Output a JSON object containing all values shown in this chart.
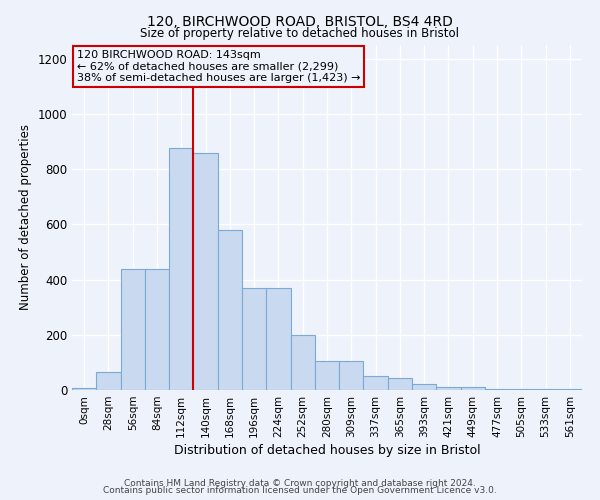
{
  "title": "120, BIRCHWOOD ROAD, BRISTOL, BS4 4RD",
  "subtitle": "Size of property relative to detached houses in Bristol",
  "xlabel": "Distribution of detached houses by size in Bristol",
  "ylabel": "Number of detached properties",
  "bar_color": "#c8d9f0",
  "bar_edge_color": "#7baad4",
  "categories": [
    "0sqm",
    "28sqm",
    "56sqm",
    "84sqm",
    "112sqm",
    "140sqm",
    "168sqm",
    "196sqm",
    "224sqm",
    "252sqm",
    "280sqm",
    "309sqm",
    "337sqm",
    "365sqm",
    "393sqm",
    "421sqm",
    "449sqm",
    "477sqm",
    "505sqm",
    "533sqm",
    "561sqm"
  ],
  "values": [
    8,
    65,
    440,
    440,
    875,
    860,
    580,
    370,
    370,
    200,
    105,
    105,
    50,
    42,
    22,
    12,
    12,
    4,
    4,
    4,
    2
  ],
  "vline_position": 4.5,
  "vline_color": "#cc0000",
  "annotation_text": "120 BIRCHWOOD ROAD: 143sqm\n← 62% of detached houses are smaller (2,299)\n38% of semi-detached houses are larger (1,423) →",
  "ylim": [
    0,
    1250
  ],
  "yticks": [
    0,
    200,
    400,
    600,
    800,
    1000,
    1200
  ],
  "footer_line1": "Contains HM Land Registry data © Crown copyright and database right 2024.",
  "footer_line2": "Contains public sector information licensed under the Open Government Licence v3.0.",
  "bg_color": "#eef2fa",
  "grid_color": "#ffffff"
}
